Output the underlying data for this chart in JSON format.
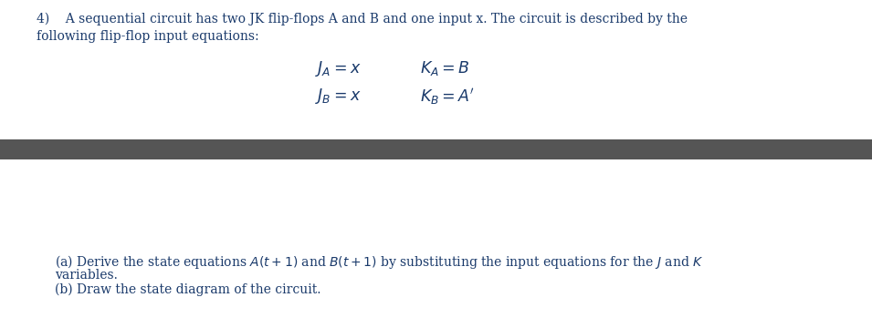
{
  "background_color": "#ffffff",
  "text_color": "#1a3a6b",
  "header_text_line1": "4)    A sequential circuit has two JK flip-flops A and B and one input x. The circuit is described by the",
  "header_text_line2": "following flip-flop input equations:",
  "eq1_left": "$J_A = x$",
  "eq1_right": "$K_A = B$",
  "eq2_left": "$J_B = x$",
  "eq2_right": "$K_B = A'$",
  "divider_color": "#555555",
  "part_a_line1": "(a) Derive the state equations $A(t + 1)$ and $B(t + 1)$ by substituting the input equations for the $J$ and $K$",
  "part_a_line2": "     variables.",
  "part_b": "(b) Draw the state diagram of the circuit.",
  "font_size_header": 10.0,
  "font_size_eq": 12.5,
  "font_size_parts": 10.0
}
